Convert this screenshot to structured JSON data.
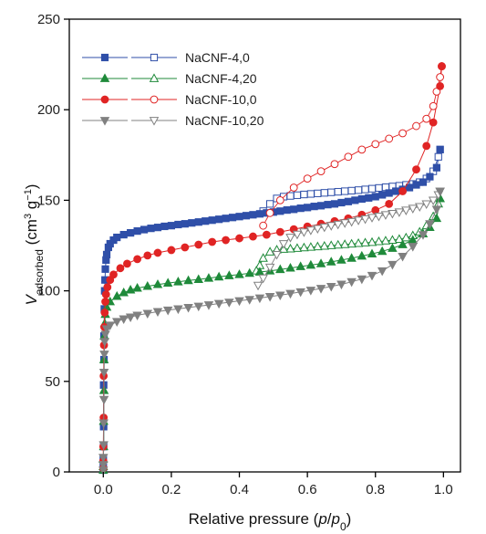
{
  "chart_data": {
    "type": "scatter",
    "xlabel": {
      "prefix": "Relative pressure (",
      "p": "p",
      "slash": "/",
      "p0": "p",
      "sub": "0",
      "suffix": ")"
    },
    "ylabel": {
      "v": "V",
      "vsub": "adsorbed",
      "unit_open": " (cm",
      "cm_sup": "3",
      "g": " g",
      "g_sup": "−1",
      "unit_close": ")"
    },
    "xlim": [
      -0.1,
      1.05
    ],
    "ylim": [
      0,
      250
    ],
    "xticks": [
      0.0,
      0.2,
      0.4,
      0.6,
      0.8,
      1.0
    ],
    "xtick_labels": [
      "0.0",
      "0.2",
      "0.4",
      "0.6",
      "0.8",
      "1.0"
    ],
    "yticks": [
      0,
      50,
      100,
      150,
      200,
      250
    ],
    "ytick_labels": [
      "0",
      "50",
      "100",
      "150",
      "200",
      "250"
    ],
    "legend_position": "top-left",
    "series": [
      {
        "name": "NaCNF-4,0",
        "color": "#2f4fa8",
        "marker": "square",
        "adsorption": [
          [
            0.0,
            1
          ],
          [
            0.0,
            3
          ],
          [
            0.0,
            7
          ],
          [
            0.001,
            14
          ],
          [
            0.001,
            25
          ],
          [
            0.001,
            48
          ],
          [
            0.002,
            62
          ],
          [
            0.002,
            75
          ],
          [
            0.003,
            90
          ],
          [
            0.004,
            100
          ],
          [
            0.005,
            106
          ],
          [
            0.006,
            112
          ],
          [
            0.008,
            117
          ],
          [
            0.01,
            120
          ],
          [
            0.015,
            124
          ],
          [
            0.02,
            126
          ],
          [
            0.03,
            128
          ],
          [
            0.04,
            129.5
          ],
          [
            0.06,
            131
          ],
          [
            0.08,
            132
          ],
          [
            0.1,
            133
          ],
          [
            0.12,
            133.8
          ],
          [
            0.14,
            134.5
          ],
          [
            0.16,
            135
          ],
          [
            0.18,
            135.6
          ],
          [
            0.2,
            136
          ],
          [
            0.22,
            136.6
          ],
          [
            0.24,
            137
          ],
          [
            0.26,
            137.5
          ],
          [
            0.28,
            138
          ],
          [
            0.3,
            138.5
          ],
          [
            0.32,
            139
          ],
          [
            0.34,
            139.5
          ],
          [
            0.36,
            140
          ],
          [
            0.38,
            140.5
          ],
          [
            0.4,
            141
          ],
          [
            0.42,
            141.5
          ],
          [
            0.44,
            142
          ],
          [
            0.46,
            142.5
          ],
          [
            0.48,
            143
          ],
          [
            0.5,
            143.5
          ],
          [
            0.52,
            144
          ],
          [
            0.54,
            144.6
          ],
          [
            0.56,
            145
          ],
          [
            0.58,
            145.6
          ],
          [
            0.6,
            146
          ],
          [
            0.62,
            146.6
          ],
          [
            0.64,
            147
          ],
          [
            0.66,
            147.6
          ],
          [
            0.68,
            148
          ],
          [
            0.7,
            148.7
          ],
          [
            0.72,
            149.3
          ],
          [
            0.74,
            150
          ],
          [
            0.76,
            150.7
          ],
          [
            0.78,
            151.3
          ],
          [
            0.8,
            152
          ],
          [
            0.82,
            153
          ],
          [
            0.84,
            154
          ],
          [
            0.86,
            155
          ],
          [
            0.88,
            156
          ],
          [
            0.9,
            157
          ],
          [
            0.92,
            158.5
          ],
          [
            0.94,
            160
          ],
          [
            0.96,
            163
          ],
          [
            0.98,
            168
          ],
          [
            0.99,
            178
          ]
        ],
        "desorption": [
          [
            0.99,
            178
          ],
          [
            0.985,
            174
          ],
          [
            0.97,
            166
          ],
          [
            0.95,
            162
          ],
          [
            0.93,
            160
          ],
          [
            0.91,
            159
          ],
          [
            0.89,
            158.5
          ],
          [
            0.87,
            158
          ],
          [
            0.85,
            157.6
          ],
          [
            0.83,
            157.2
          ],
          [
            0.81,
            156.8
          ],
          [
            0.79,
            156.4
          ],
          [
            0.77,
            156
          ],
          [
            0.75,
            155.6
          ],
          [
            0.73,
            155.3
          ],
          [
            0.71,
            155
          ],
          [
            0.69,
            154.7
          ],
          [
            0.67,
            154.4
          ],
          [
            0.65,
            154.1
          ],
          [
            0.63,
            153.8
          ],
          [
            0.61,
            153.5
          ],
          [
            0.59,
            153.2
          ],
          [
            0.57,
            152.8
          ],
          [
            0.55,
            152.4
          ],
          [
            0.53,
            152
          ],
          [
            0.51,
            151
          ],
          [
            0.49,
            148
          ],
          [
            0.47,
            144
          ]
        ]
      },
      {
        "name": "NaCNF-4,20",
        "color": "#1f8a3a",
        "marker": "triangle-up",
        "adsorption": [
          [
            0.0,
            1
          ],
          [
            0.0,
            3
          ],
          [
            0.0,
            7
          ],
          [
            0.001,
            14
          ],
          [
            0.001,
            28
          ],
          [
            0.002,
            45
          ],
          [
            0.002,
            62
          ],
          [
            0.003,
            75
          ],
          [
            0.004,
            82
          ],
          [
            0.006,
            87
          ],
          [
            0.01,
            91
          ],
          [
            0.02,
            94
          ],
          [
            0.04,
            97
          ],
          [
            0.06,
            99
          ],
          [
            0.08,
            100.5
          ],
          [
            0.1,
            101.5
          ],
          [
            0.13,
            102.5
          ],
          [
            0.16,
            103.5
          ],
          [
            0.19,
            104.3
          ],
          [
            0.22,
            105
          ],
          [
            0.25,
            105.7
          ],
          [
            0.28,
            106.3
          ],
          [
            0.31,
            107
          ],
          [
            0.34,
            107.7
          ],
          [
            0.37,
            108.4
          ],
          [
            0.4,
            109
          ],
          [
            0.43,
            109.7
          ],
          [
            0.46,
            110.4
          ],
          [
            0.49,
            111
          ],
          [
            0.52,
            111.8
          ],
          [
            0.55,
            112.6
          ],
          [
            0.58,
            113.4
          ],
          [
            0.61,
            114.2
          ],
          [
            0.64,
            115
          ],
          [
            0.67,
            116
          ],
          [
            0.7,
            117
          ],
          [
            0.73,
            118
          ],
          [
            0.76,
            119.2
          ],
          [
            0.79,
            120.4
          ],
          [
            0.82,
            121.8
          ],
          [
            0.85,
            123.5
          ],
          [
            0.88,
            125.5
          ],
          [
            0.91,
            128
          ],
          [
            0.94,
            131.5
          ],
          [
            0.96,
            135
          ],
          [
            0.98,
            140
          ],
          [
            0.99,
            151
          ]
        ],
        "desorption": [
          [
            0.99,
            151
          ],
          [
            0.985,
            148
          ],
          [
            0.97,
            141
          ],
          [
            0.95,
            136
          ],
          [
            0.93,
            132.5
          ],
          [
            0.91,
            130.5
          ],
          [
            0.89,
            129.3
          ],
          [
            0.87,
            128.5
          ],
          [
            0.85,
            128
          ],
          [
            0.83,
            127.6
          ],
          [
            0.81,
            127.2
          ],
          [
            0.79,
            126.8
          ],
          [
            0.77,
            126.5
          ],
          [
            0.75,
            126.2
          ],
          [
            0.73,
            125.9
          ],
          [
            0.71,
            125.6
          ],
          [
            0.69,
            125.3
          ],
          [
            0.67,
            125
          ],
          [
            0.65,
            124.7
          ],
          [
            0.63,
            124.4
          ],
          [
            0.61,
            124.1
          ],
          [
            0.59,
            123.8
          ],
          [
            0.57,
            123.5
          ],
          [
            0.55,
            123.2
          ],
          [
            0.53,
            123
          ],
          [
            0.51,
            122.6
          ],
          [
            0.49,
            121.5
          ],
          [
            0.47,
            118
          ],
          [
            0.46,
            114
          ],
          [
            0.45,
            111
          ]
        ]
      },
      {
        "name": "NaCNF-10,0",
        "color": "#e02424",
        "marker": "circle",
        "adsorption": [
          [
            0.0,
            2
          ],
          [
            0.0,
            6
          ],
          [
            0.0,
            14
          ],
          [
            0.001,
            30
          ],
          [
            0.001,
            53
          ],
          [
            0.002,
            70
          ],
          [
            0.003,
            80
          ],
          [
            0.004,
            88
          ],
          [
            0.006,
            94
          ],
          [
            0.008,
            98
          ],
          [
            0.012,
            102
          ],
          [
            0.02,
            106
          ],
          [
            0.03,
            109
          ],
          [
            0.05,
            112.5
          ],
          [
            0.07,
            115
          ],
          [
            0.1,
            117.5
          ],
          [
            0.13,
            119.5
          ],
          [
            0.16,
            121
          ],
          [
            0.2,
            122.5
          ],
          [
            0.24,
            124
          ],
          [
            0.28,
            125.5
          ],
          [
            0.32,
            127
          ],
          [
            0.36,
            128
          ],
          [
            0.4,
            129
          ],
          [
            0.44,
            130
          ],
          [
            0.48,
            131
          ],
          [
            0.52,
            132.5
          ],
          [
            0.56,
            134
          ],
          [
            0.6,
            135.5
          ],
          [
            0.64,
            137
          ],
          [
            0.68,
            138.5
          ],
          [
            0.72,
            140
          ],
          [
            0.76,
            142
          ],
          [
            0.8,
            144.5
          ],
          [
            0.84,
            148
          ],
          [
            0.88,
            155
          ],
          [
            0.92,
            167
          ],
          [
            0.95,
            180
          ],
          [
            0.97,
            193
          ],
          [
            0.99,
            213
          ],
          [
            0.995,
            224
          ]
        ],
        "desorption": [
          [
            0.995,
            224
          ],
          [
            0.99,
            218
          ],
          [
            0.98,
            210
          ],
          [
            0.97,
            202
          ],
          [
            0.95,
            195
          ],
          [
            0.92,
            191
          ],
          [
            0.88,
            187
          ],
          [
            0.84,
            184
          ],
          [
            0.8,
            181
          ],
          [
            0.76,
            178
          ],
          [
            0.72,
            174
          ],
          [
            0.68,
            170
          ],
          [
            0.64,
            166
          ],
          [
            0.6,
            162
          ],
          [
            0.56,
            157
          ],
          [
            0.52,
            150
          ],
          [
            0.49,
            143
          ],
          [
            0.47,
            136
          ]
        ]
      },
      {
        "name": "NaCNF-10,20",
        "color": "#808080",
        "marker": "triangle-down",
        "adsorption": [
          [
            0.0,
            1
          ],
          [
            0.0,
            4
          ],
          [
            0.0,
            8
          ],
          [
            0.001,
            15
          ],
          [
            0.001,
            27
          ],
          [
            0.002,
            40
          ],
          [
            0.002,
            55
          ],
          [
            0.003,
            65
          ],
          [
            0.004,
            72
          ],
          [
            0.006,
            76
          ],
          [
            0.01,
            79
          ],
          [
            0.02,
            81
          ],
          [
            0.04,
            83
          ],
          [
            0.06,
            84.5
          ],
          [
            0.08,
            85.5
          ],
          [
            0.1,
            86.5
          ],
          [
            0.13,
            87.5
          ],
          [
            0.16,
            88.5
          ],
          [
            0.19,
            89.3
          ],
          [
            0.22,
            90
          ],
          [
            0.25,
            90.8
          ],
          [
            0.28,
            91.5
          ],
          [
            0.31,
            92.2
          ],
          [
            0.34,
            93
          ],
          [
            0.37,
            93.7
          ],
          [
            0.4,
            94.5
          ],
          [
            0.43,
            95.2
          ],
          [
            0.46,
            96
          ],
          [
            0.49,
            96.8
          ],
          [
            0.52,
            97.6
          ],
          [
            0.55,
            98.5
          ],
          [
            0.58,
            99.4
          ],
          [
            0.61,
            100.3
          ],
          [
            0.64,
            101.3
          ],
          [
            0.67,
            102.4
          ],
          [
            0.7,
            103.6
          ],
          [
            0.73,
            105
          ],
          [
            0.76,
            106.5
          ],
          [
            0.79,
            108.5
          ],
          [
            0.82,
            111
          ],
          [
            0.85,
            114.5
          ],
          [
            0.88,
            119
          ],
          [
            0.91,
            124.5
          ],
          [
            0.94,
            131
          ],
          [
            0.96,
            137
          ],
          [
            0.98,
            145
          ],
          [
            0.99,
            155
          ]
        ],
        "desorption": [
          [
            0.99,
            155
          ],
          [
            0.985,
            153
          ],
          [
            0.97,
            150
          ],
          [
            0.95,
            148
          ],
          [
            0.93,
            146.5
          ],
          [
            0.91,
            145.5
          ],
          [
            0.89,
            144.5
          ],
          [
            0.87,
            143.5
          ],
          [
            0.85,
            142.7
          ],
          [
            0.83,
            142
          ],
          [
            0.81,
            141.2
          ],
          [
            0.79,
            140.5
          ],
          [
            0.77,
            139.7
          ],
          [
            0.75,
            139
          ],
          [
            0.73,
            138.2
          ],
          [
            0.71,
            137.5
          ],
          [
            0.69,
            136.7
          ],
          [
            0.67,
            136
          ],
          [
            0.65,
            135.2
          ],
          [
            0.63,
            134.4
          ],
          [
            0.61,
            133.5
          ],
          [
            0.59,
            132.5
          ],
          [
            0.57,
            131.2
          ],
          [
            0.55,
            129.5
          ],
          [
            0.53,
            126
          ],
          [
            0.51,
            120
          ],
          [
            0.49,
            113
          ],
          [
            0.47,
            107
          ],
          [
            0.455,
            103
          ]
        ]
      }
    ]
  }
}
